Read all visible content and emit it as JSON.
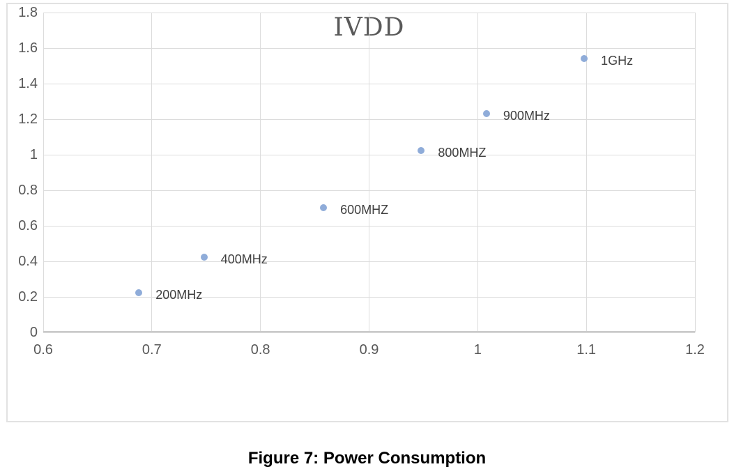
{
  "figure": {
    "caption": "Figure 7: Power Consumption"
  },
  "chart_data": {
    "type": "scatter",
    "title": "IVDD",
    "xlabel": "",
    "ylabel": "",
    "xlim": [
      0.6,
      1.2
    ],
    "ylim": [
      0,
      1.8
    ],
    "grid": true,
    "legend": false,
    "x_tick_values": [
      0.6,
      0.7,
      0.8,
      0.9,
      1.0,
      1.1,
      1.2
    ],
    "x_tick_labels": [
      "0.6",
      "0.7",
      "0.8",
      "0.9",
      "1",
      "1.1",
      "1.2"
    ],
    "y_tick_values": [
      0,
      0.2,
      0.4,
      0.6,
      0.8,
      1.0,
      1.2,
      1.4,
      1.6,
      1.8
    ],
    "y_tick_labels": [
      "0",
      "0.2",
      "0.4",
      "0.6",
      "0.8",
      "1",
      "1.2",
      "1.4",
      "1.6",
      "1.8"
    ],
    "points": [
      {
        "label": "200MHz",
        "x": 0.69,
        "y": 0.21
      },
      {
        "label": "400MHz",
        "x": 0.75,
        "y": 0.41
      },
      {
        "label": "600MHZ",
        "x": 0.86,
        "y": 0.69
      },
      {
        "label": "800MHZ",
        "x": 0.95,
        "y": 1.01
      },
      {
        "label": "900MHz",
        "x": 1.01,
        "y": 1.22
      },
      {
        "label": "1GHz",
        "x": 1.1,
        "y": 1.53
      }
    ],
    "colors": {
      "marker_ring": "#8FACD9",
      "marker_hole": "#FFFFFF",
      "gridline": "#DCDCDC",
      "axis_line": "#C9C9C9",
      "tick_label": "#595959",
      "title": "#595959",
      "point_label": "#404040",
      "frame_border": "#E2E2E2"
    }
  }
}
